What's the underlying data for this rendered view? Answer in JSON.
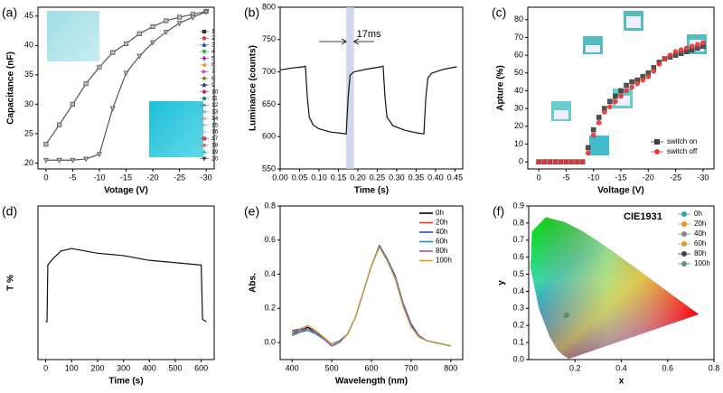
{
  "chart_data": [
    {
      "type": "line",
      "label": "(a)",
      "xlabel": "Votage (V)",
      "ylabel": "Capacitance (nF)",
      "xlim": [
        1.5,
        -31.5
      ],
      "xticks": [
        0,
        -5,
        -10,
        -15,
        -20,
        -25,
        -30
      ],
      "ylim": [
        19,
        46.5
      ],
      "yticks": [
        20,
        25,
        30,
        35,
        40,
        45
      ],
      "x": [
        0,
        -2.5,
        -5,
        -7.5,
        -10,
        -12.5,
        -15,
        -17.5,
        -20,
        -22.5,
        -25,
        -27.5,
        -30
      ],
      "series": [
        {
          "color": "#555555",
          "marker": "square",
          "values": [
            23.2,
            26.5,
            30,
            33.5,
            36.3,
            38.8,
            40.3,
            42,
            43.2,
            44.2,
            44.8,
            45.3,
            45.8
          ]
        },
        {
          "color": "#555555",
          "marker": "triangle-down",
          "values": [
            20.5,
            20.5,
            20.5,
            20.7,
            21.5,
            29.3,
            35.3,
            38.2,
            40.5,
            42.3,
            43.8,
            44.8,
            45.7
          ]
        }
      ],
      "legend": [
        {
          "name": "1",
          "color": "#333333",
          "marker": "square"
        },
        {
          "name": "2",
          "color": "#e03030",
          "marker": "circle"
        },
        {
          "name": "3",
          "color": "#2040d0",
          "marker": "triangle-up"
        },
        {
          "name": "4",
          "color": "#20a040",
          "marker": "triangle-down"
        },
        {
          "name": "5",
          "color": "#9030c0",
          "marker": "diamond"
        },
        {
          "name": "6",
          "color": "#e0a020",
          "marker": "triangle-left"
        },
        {
          "name": "7",
          "color": "#e040a0",
          "marker": "triangle-right"
        },
        {
          "name": "8",
          "color": "#808020",
          "marker": "hexagon"
        },
        {
          "name": "9",
          "color": "#203090",
          "marker": "star"
        },
        {
          "name": "10",
          "color": "#c02060",
          "marker": "circle"
        },
        {
          "name": "11",
          "color": "#208080",
          "marker": "circle"
        },
        {
          "name": "12",
          "color": "#707070",
          "marker": "cross"
        },
        {
          "name": "13",
          "color": "#40a0e0",
          "marker": "cross"
        },
        {
          "name": "14",
          "color": "#e070a0",
          "marker": "cross"
        },
        {
          "name": "15",
          "color": "#a0a0a0",
          "marker": "plus"
        },
        {
          "name": "16",
          "color": "#b0b0e0",
          "marker": "plus"
        },
        {
          "name": "17",
          "color": "#d04040",
          "marker": "square"
        },
        {
          "name": "18",
          "color": "#e07070",
          "marker": "circle"
        },
        {
          "name": "19",
          "color": "#40c0c0",
          "marker": "triangle-up"
        },
        {
          "name": "20",
          "color": "#404040",
          "marker": "triangle-down"
        }
      ]
    },
    {
      "type": "line",
      "label": "(b)",
      "xlabel": "Time (s)",
      "ylabel": "Luminance (counts)",
      "xlim": [
        0,
        0.47
      ],
      "xticks": [
        {
          "value": 0,
          "label": "0.00"
        },
        {
          "value": 0.05,
          "label": "0.05"
        },
        {
          "value": 0.1,
          "label": "0.10"
        },
        {
          "value": 0.15,
          "label": "0.15"
        },
        {
          "value": 0.2,
          "label": "0.20"
        },
        {
          "value": 0.25,
          "label": "0.25"
        },
        {
          "value": 0.3,
          "label": "0.30"
        },
        {
          "value": 0.35,
          "label": "0.35"
        },
        {
          "value": 0.4,
          "label": "0.40"
        },
        {
          "value": 0.45,
          "label": "0.45"
        }
      ],
      "ylim": [
        550,
        800
      ],
      "yticks": [
        550,
        600,
        650,
        700,
        750,
        800
      ],
      "highlight": [
        0.17,
        0.19
      ],
      "annotation": "17ms",
      "x": [
        0,
        0.03,
        0.06,
        0.065,
        0.07,
        0.075,
        0.085,
        0.1,
        0.13,
        0.16,
        0.17,
        0.175,
        0.18,
        0.19,
        0.22,
        0.26,
        0.265,
        0.27,
        0.275,
        0.29,
        0.32,
        0.35,
        0.37,
        0.375,
        0.38,
        0.39,
        0.42,
        0.455
      ],
      "series": [
        {
          "color": "#111111",
          "values": [
            703,
            706,
            708,
            709,
            660,
            630,
            618,
            612,
            607,
            605,
            604,
            660,
            695,
            700,
            704,
            708,
            709,
            660,
            630,
            617,
            610,
            606,
            604,
            660,
            690,
            698,
            704,
            708
          ]
        }
      ]
    },
    {
      "type": "scatter",
      "label": "(c)",
      "xlabel": "Voltage (V)",
      "ylabel": "Apture (%)",
      "xlim": [
        2,
        -32
      ],
      "xticks": [
        0,
        -5,
        -10,
        -15,
        -20,
        -25,
        -30
      ],
      "ylim": [
        -4,
        87
      ],
      "yticks": [
        0,
        10,
        20,
        30,
        40,
        50,
        60,
        70,
        80
      ],
      "x": [
        0,
        -1,
        -2,
        -3,
        -4,
        -5,
        -6,
        -7,
        -8,
        -9,
        -10,
        -11,
        -12,
        -13,
        -14,
        -15,
        -16,
        -17,
        -18,
        -19,
        -20,
        -21,
        -22,
        -23,
        -24,
        -25,
        -26,
        -27,
        -28,
        -29,
        -30
      ],
      "series": [
        {
          "name": "switch on",
          "color": "#404040",
          "marker": "square",
          "values": [
            0,
            0,
            0,
            0,
            0,
            0,
            0,
            0,
            0,
            8,
            18,
            25,
            30,
            34,
            37,
            40,
            43,
            45,
            46,
            48,
            50,
            53,
            56,
            58,
            59,
            60,
            61,
            62,
            63,
            64,
            65
          ]
        },
        {
          "name": "switch off",
          "color": "#e83535",
          "marker": "circle",
          "values": [
            0,
            0,
            0,
            0,
            0,
            0,
            0,
            0,
            0,
            5,
            15,
            22,
            28,
            31,
            34,
            37,
            40,
            42,
            44,
            46,
            48,
            51,
            55,
            58,
            60,
            62,
            63,
            64,
            65,
            66,
            67
          ]
        }
      ]
    },
    {
      "type": "line",
      "label": "(d)",
      "xlabel": "Time (s)",
      "ylabel": "T %",
      "xlim": [
        -30,
        650
      ],
      "xticks": [
        0,
        100,
        200,
        300,
        400,
        500,
        600
      ],
      "ylim": [
        10,
        75
      ],
      "yticks": [],
      "x": [
        0,
        5,
        8,
        15,
        30,
        60,
        100,
        150,
        200,
        300,
        400,
        500,
        600,
        605,
        620
      ],
      "series": [
        {
          "color": "#111111",
          "values": [
            26,
            26,
            50,
            51,
            53,
            56,
            57,
            56,
            55,
            54,
            52,
            51,
            50,
            27,
            26
          ]
        }
      ]
    },
    {
      "type": "line",
      "label": "(e)",
      "xlabel": "Wavelength (nm)",
      "ylabel": "Abs.",
      "xlim": [
        370,
        830
      ],
      "xticks": [
        400,
        500,
        600,
        700,
        800
      ],
      "ylim": [
        -0.1,
        0.8
      ],
      "yticks": [
        {
          "value": 0,
          "label": "0.0"
        },
        0.2,
        0.4,
        0.6,
        0.8
      ],
      "x": [
        400,
        420,
        440,
        460,
        480,
        500,
        520,
        540,
        560,
        580,
        600,
        620,
        640,
        660,
        680,
        700,
        720,
        740,
        760,
        780,
        800
      ],
      "series": [
        {
          "name": "0h",
          "color": "#000000",
          "values": [
            0.06,
            0.07,
            0.09,
            0.06,
            0.02,
            -0.02,
            0.0,
            0.05,
            0.15,
            0.3,
            0.45,
            0.56,
            0.48,
            0.38,
            0.22,
            0.1,
            0.04,
            0.01,
            0.0,
            -0.01,
            -0.02
          ]
        },
        {
          "name": "20h",
          "color": "#e8392a",
          "values": [
            0.05,
            0.06,
            0.08,
            0.05,
            0.02,
            -0.02,
            0.0,
            0.05,
            0.15,
            0.3,
            0.45,
            0.56,
            0.48,
            0.38,
            0.22,
            0.1,
            0.04,
            0.01,
            0.0,
            -0.01,
            -0.02
          ]
        },
        {
          "name": "40h",
          "color": "#1f4fc0",
          "values": [
            0.07,
            0.08,
            0.08,
            0.06,
            0.03,
            -0.01,
            0.01,
            0.05,
            0.15,
            0.3,
            0.45,
            0.57,
            0.49,
            0.39,
            0.23,
            0.11,
            0.04,
            0.01,
            0.0,
            -0.01,
            -0.02
          ]
        },
        {
          "name": "60h",
          "color": "#1a9a9a",
          "values": [
            0.04,
            0.06,
            0.07,
            0.05,
            0.02,
            -0.02,
            0.0,
            0.05,
            0.15,
            0.3,
            0.45,
            0.56,
            0.48,
            0.38,
            0.22,
            0.1,
            0.04,
            0.01,
            0.0,
            -0.01,
            -0.02
          ]
        },
        {
          "name": "80h",
          "color": "#9b59b6",
          "values": [
            0.05,
            0.07,
            0.08,
            0.06,
            0.02,
            -0.02,
            0.0,
            0.05,
            0.15,
            0.3,
            0.45,
            0.56,
            0.48,
            0.38,
            0.22,
            0.1,
            0.04,
            0.01,
            0.0,
            -0.01,
            -0.02
          ]
        },
        {
          "name": "100h",
          "color": "#c9a227",
          "values": [
            0.06,
            0.08,
            0.1,
            0.07,
            0.03,
            -0.01,
            0.0,
            0.05,
            0.15,
            0.3,
            0.45,
            0.56,
            0.48,
            0.37,
            0.21,
            0.09,
            0.03,
            0.01,
            0.0,
            -0.01,
            -0.02
          ]
        }
      ]
    },
    {
      "type": "scatter",
      "label": "(f)",
      "xlabel": "x",
      "ylabel": "y",
      "title": "CIE1931",
      "xlim": [
        0,
        0.8
      ],
      "xticks": [
        0.2,
        0.4,
        0.6,
        0.8
      ],
      "ylim": [
        0,
        0.9
      ],
      "yticks": [
        {
          "value": 0,
          "label": "0.0"
        },
        0.1,
        0.2,
        0.3,
        0.4,
        0.5,
        0.6,
        0.7,
        0.8,
        0.9
      ],
      "series": [
        {
          "name": "0h",
          "color": "#2aa8b0",
          "marker": "circle",
          "x": [
            0.16
          ],
          "values": [
            0.26
          ]
        },
        {
          "name": "20h",
          "color": "#e8952a",
          "marker": "circle",
          "x": [
            0.161
          ],
          "values": [
            0.262
          ]
        },
        {
          "name": "40h",
          "color": "#888888",
          "marker": "circle",
          "x": [
            0.159
          ],
          "values": [
            0.259
          ]
        },
        {
          "name": "60h",
          "color": "#e0a030",
          "marker": "circle",
          "x": [
            0.16
          ],
          "values": [
            0.261
          ]
        },
        {
          "name": "80h",
          "color": "#444444",
          "marker": "circle",
          "x": [
            0.162
          ],
          "values": [
            0.26
          ]
        },
        {
          "name": "100h",
          "color": "#5a9a70",
          "marker": "circle",
          "x": [
            0.16
          ],
          "values": [
            0.258
          ]
        }
      ]
    }
  ]
}
